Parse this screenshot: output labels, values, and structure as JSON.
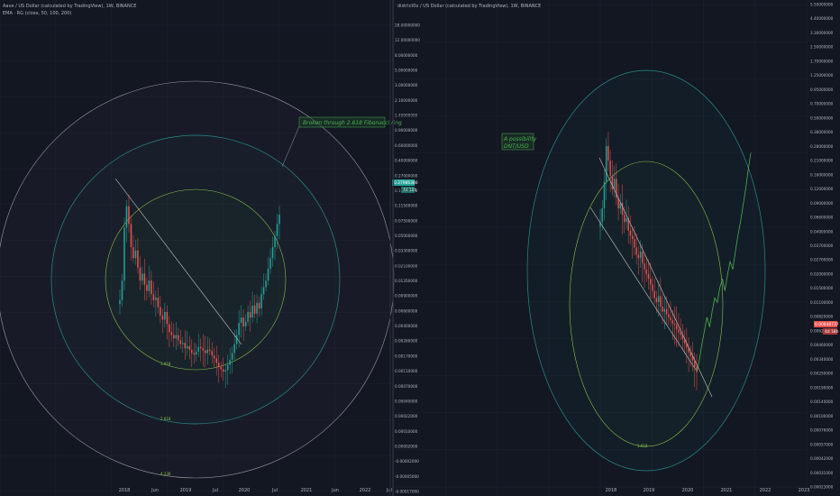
{
  "colors": {
    "background": "#131722",
    "grid": "#1e2230",
    "up": "#26a69a",
    "down": "#ef5350",
    "trendline": "#c8c8c8",
    "fib_teal": "#2a8b86",
    "fib_green": "#8bc34a",
    "annotation": "#4caf50",
    "price_tag_left": "#26a69a",
    "price_tag_right": "#ef5350"
  },
  "chart_data": [
    {
      "type": "candlestick",
      "header": {
        "title": "Aave / US Dollar (calculated by TradingView), 1W, BINANCE",
        "indicator": "EMA · RG (close, 50, 100, 200)"
      },
      "y_scale": "log",
      "y_ticks": [
        "28.00000000",
        "12.00000000",
        "8.00000000",
        "5.00000000",
        "3.00000000",
        "2.10000000",
        "1.40000000",
        "0.90000000",
        "0.60000000",
        "0.40000000",
        "0.27000000",
        "0.16000000",
        "0.11500000",
        "0.07500000",
        "0.05000000",
        "0.03300000",
        "0.02100000",
        "0.01350000",
        "0.00900000",
        "0.00600000",
        "0.00400000",
        "0.00260000",
        "0.00170000",
        "0.00110000",
        "0.00070000",
        "0.00040000",
        "0.00022000",
        "0.00010000",
        "0.00002000",
        "-0.00002000",
        "-0.00005000",
        "-0.00017000"
      ],
      "price_tag": "0.27986380",
      "price_tag_sub": "4d 18h",
      "x_ticks": [
        "2018",
        "Jun",
        "2019",
        "Jul",
        "2020",
        "Jul",
        "2021",
        "Jun",
        "2022",
        "Jul"
      ],
      "closes": [
        0.03,
        0.05,
        0.2,
        0.35,
        0.22,
        0.12,
        0.09,
        0.11,
        0.07,
        0.05,
        0.06,
        0.045,
        0.038,
        0.05,
        0.035,
        0.03,
        0.032,
        0.025,
        0.02,
        0.018,
        0.022,
        0.016,
        0.013,
        0.012,
        0.011,
        0.012,
        0.0105,
        0.0095,
        0.0098,
        0.0085,
        0.009,
        0.0082,
        0.0075,
        0.0072,
        0.0078,
        0.0088,
        0.0085,
        0.008,
        0.0075,
        0.0082,
        0.0079,
        0.007,
        0.0065,
        0.0058,
        0.0052,
        0.0049,
        0.0046,
        0.0048,
        0.0055,
        0.0063,
        0.0075,
        0.0095,
        0.012,
        0.0165,
        0.019,
        0.015,
        0.017,
        0.022,
        0.019,
        0.026,
        0.021,
        0.028,
        0.024,
        0.035,
        0.042,
        0.05,
        0.068,
        0.09,
        0.12,
        0.16,
        0.22,
        0.28
      ],
      "annotation": "Broken through 2.618 Fibonacci ring",
      "fib_labels": [
        "1.618",
        "2.618",
        "4.236"
      ],
      "price_min": 0.0002,
      "price_max": 40
    },
    {
      "type": "candlestick",
      "header": {
        "title": "district0x / US Dollar (calculated by TradingView), 1W, BINANCE"
      },
      "y_scale": "log",
      "y_ticks": [
        "5.50000000",
        "4.40000000",
        "3.30000000",
        "2.50000000",
        "1.70000000",
        "1.25000000",
        "0.95000000",
        "0.70000000",
        "0.50000000",
        "0.38000000",
        "0.28000000",
        "0.21000000",
        "0.16000000",
        "0.12000000",
        "0.09000000",
        "0.06600000",
        "0.04900000",
        "0.03700000",
        "0.02700000",
        "0.02000000",
        "0.01500000",
        "0.01100000",
        "0.00820000",
        "0.00620000",
        "0.00460000",
        "0.00340000",
        "0.00250000",
        "0.00190000",
        "0.00140000",
        "0.00100000",
        "0.00076000",
        "0.00057000",
        "0.00042000",
        "0.00031000",
        "0.00023000"
      ],
      "price_tag": "0.00848737",
      "price_tag_sub": "4d 18h",
      "x_ticks": [
        "2018",
        "2019",
        "2020",
        "2021",
        "2022",
        "2023"
      ],
      "closes": [
        0.06,
        0.08,
        0.14,
        0.3,
        0.22,
        0.16,
        0.12,
        0.15,
        0.1,
        0.08,
        0.09,
        0.07,
        0.06,
        0.065,
        0.05,
        0.045,
        0.042,
        0.035,
        0.03,
        0.028,
        0.032,
        0.025,
        0.022,
        0.02,
        0.018,
        0.016,
        0.014,
        0.012,
        0.011,
        0.0125,
        0.01,
        0.009,
        0.0095,
        0.0085,
        0.008,
        0.0075,
        0.007,
        0.0068,
        0.0062,
        0.0058,
        0.0055,
        0.005,
        0.0046,
        0.0042,
        0.0038,
        0.0035,
        0.0032,
        0.0028,
        0.0025
      ],
      "projection": [
        0.0025,
        0.0032,
        0.0045,
        0.006,
        0.008,
        0.0065,
        0.009,
        0.012,
        0.011,
        0.015,
        0.018,
        0.014,
        0.02,
        0.026,
        0.022,
        0.032,
        0.045,
        0.06,
        0.085,
        0.12,
        0.18,
        0.26
      ],
      "annotation": [
        "A possibility",
        "DNT/USD"
      ],
      "fib_labels": [
        "1.618"
      ],
      "price_min": 0.00022,
      "price_max": 6
    }
  ]
}
